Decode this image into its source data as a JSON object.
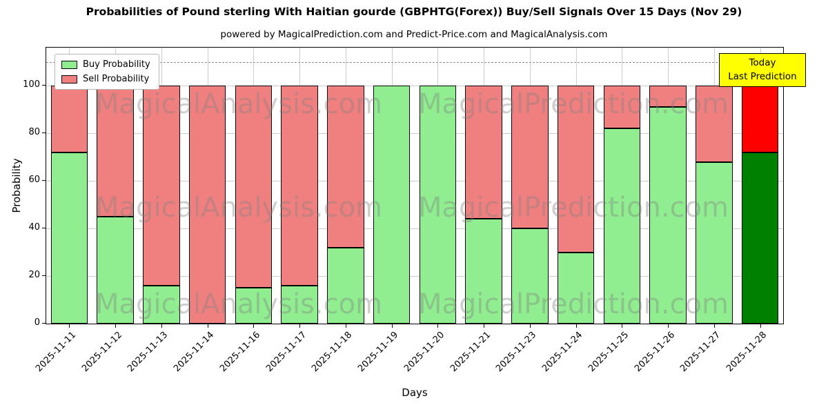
{
  "figure": {
    "subtitle": "powered by MagicalPrediction.com and Predict-Price.com and MagicalAnalysis.com"
  },
  "annotation": {
    "line1": "Today",
    "line2": "Last Prediction",
    "bg_color": "#ffff00"
  },
  "watermarks": {
    "texts": [
      "MagicalAnalysis.com",
      "MagicalPrediction.com"
    ]
  },
  "chart_data": {
    "type": "bar",
    "stacked": true,
    "title": "Probabilities of Pound sterling With Haitian gourde (GBPHTG(Forex)) Buy/Sell Signals Over 15 Days (Nov 29)",
    "xlabel": "Days",
    "ylabel": "Probability",
    "categories": [
      "2025-11-11",
      "2025-11-12",
      "2025-11-13",
      "2025-11-14",
      "2025-11-16",
      "2025-11-17",
      "2025-11-18",
      "2025-11-19",
      "2025-11-20",
      "2025-11-21",
      "2025-11-23",
      "2025-11-24",
      "2025-11-25",
      "2025-11-26",
      "2025-11-27",
      "2025-11-28"
    ],
    "series": [
      {
        "name": "Buy Probability",
        "color": "#90ee90",
        "values": [
          72,
          45,
          16,
          0,
          15,
          16,
          32,
          100,
          100,
          44,
          40,
          30,
          82,
          91,
          68,
          72
        ]
      },
      {
        "name": "Sell Probability",
        "color": "#f08080",
        "values": [
          28,
          55,
          84,
          100,
          85,
          84,
          68,
          0,
          0,
          56,
          60,
          70,
          18,
          9,
          32,
          28
        ]
      }
    ],
    "today_index": 15,
    "today_colors": {
      "buy": "#008000",
      "sell": "#ff0000"
    },
    "ylim": [
      0,
      116
    ],
    "yticks": [
      0,
      20,
      40,
      60,
      80,
      100
    ],
    "dashed_line_y": 110,
    "grid": true,
    "legend_position": "upper left",
    "bar_edge_color": "#000000"
  }
}
